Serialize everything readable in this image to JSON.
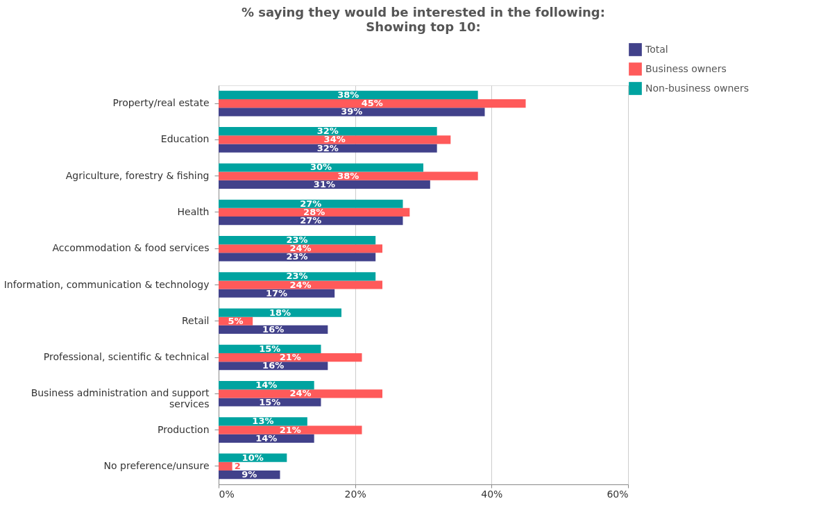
{
  "chart_data": {
    "type": "bar",
    "orientation": "horizontal",
    "title": "% saying they would be interested in the following:",
    "subtitle": "Showing top 10:",
    "categories": [
      "Property/real estate",
      "Education",
      "Agriculture, forestry & fishing",
      "Health",
      "Accommodation & food services",
      "Information, communication & technology",
      "Retail",
      "Professional, scientific & technical",
      "Business administration and support services",
      "Production",
      "No preference/unsure"
    ],
    "series": [
      {
        "name": "Total",
        "color": "#41418a",
        "values": [
          39,
          32,
          31,
          27,
          23,
          17,
          16,
          16,
          15,
          14,
          9
        ],
        "value_labels": [
          "39%",
          "32%",
          "31%",
          "27%",
          "23%",
          "17%",
          "16%",
          "16%",
          "15%",
          "14%",
          "9%"
        ]
      },
      {
        "name": "Business owners",
        "color": "#ff5a5a",
        "values": [
          45,
          34,
          38,
          28,
          24,
          24,
          5,
          21,
          24,
          21,
          2
        ],
        "value_labels": [
          "45%",
          "34%",
          "38%",
          "28%",
          "24%",
          "24%",
          "5%",
          "21%",
          "24%",
          "21%",
          "2"
        ]
      },
      {
        "name": "Non-business owners",
        "color": "#00a3a0",
        "values": [
          38,
          32,
          30,
          27,
          23,
          23,
          18,
          15,
          14,
          13,
          10
        ],
        "value_labels": [
          "38%",
          "32%",
          "30%",
          "27%",
          "23%",
          "23%",
          "18%",
          "15%",
          "14%",
          "13%",
          "10%"
        ]
      }
    ],
    "xlim": [
      0,
      60
    ],
    "xticks": [
      {
        "value": 0,
        "label": "0%"
      },
      {
        "value": 20,
        "label": "20%"
      },
      {
        "value": 40,
        "label": "40%"
      },
      {
        "value": 60,
        "label": "60%"
      }
    ],
    "grid": "x",
    "legend": "top right"
  }
}
